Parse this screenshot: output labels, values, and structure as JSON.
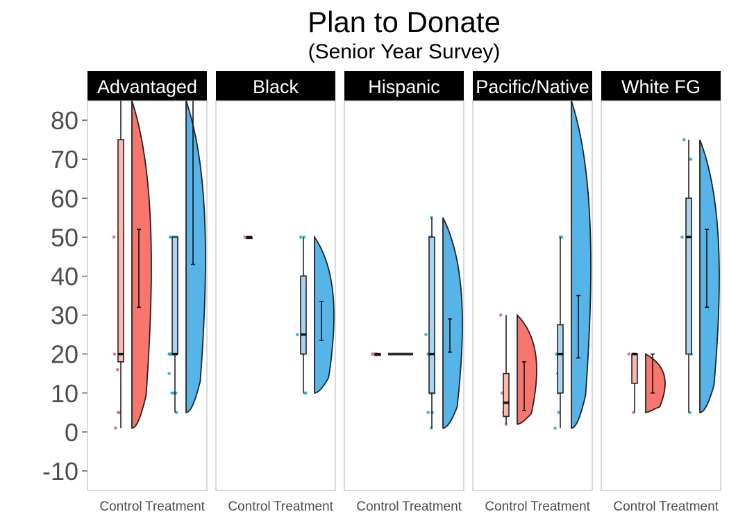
{
  "title": "Plan to Donate",
  "subtitle": "(Senior Year Survey)",
  "colors": {
    "control_fill": "#F8766D",
    "control_box": "#FFB6B0",
    "treatment_fill": "#56B4E9",
    "treatment_box": "#A8D4F2",
    "control_points": "#E06060",
    "treatment_points": "#1AAFB8",
    "strip_bg": "#000000",
    "strip_text": "#ffffff",
    "panel_border": "#b3b3b3",
    "tick_text": "#4d4d4d"
  },
  "chart_data": {
    "type": "raincloud",
    "title": "Plan to Donate",
    "subtitle": "(Senior Year Survey)",
    "xlabel": "",
    "ylabel": "",
    "ylim": [
      -15,
      85
    ],
    "yticks": [
      -10,
      0,
      10,
      20,
      30,
      40,
      50,
      60,
      70,
      80
    ],
    "categories": [
      "Control",
      "Treatment"
    ],
    "grid": false,
    "legend": "none",
    "panels": [
      {
        "name": "Advantaged",
        "groups": {
          "Control": {
            "points": [
              50,
              50,
              20,
              20,
              16,
              5,
              5,
              1
            ],
            "box": {
              "q1": 18,
              "median": 20,
              "q3": 75,
              "lo": 1,
              "hi": 90
            },
            "violin": {
              "min": 1,
              "max": 90
            },
            "mean_ci": {
              "mean": 42,
              "lo": 32,
              "hi": 52
            }
          },
          "Treatment": {
            "points": [
              50,
              50,
              50,
              50,
              50,
              25,
              20,
              20,
              20,
              20,
              20,
              15,
              10,
              10,
              10,
              5
            ],
            "box": {
              "q1": 20,
              "median": 20,
              "q3": 50,
              "lo": 5,
              "hi": 50
            },
            "violin": {
              "min": 5,
              "max": 100
            },
            "mean_ci": {
              "mean": 60,
              "lo": 43,
              "hi": 100
            }
          }
        }
      },
      {
        "name": "Black",
        "groups": {
          "Control": {
            "points": [
              50
            ],
            "box": {
              "q1": 50,
              "median": 50,
              "q3": 50,
              "lo": 50,
              "hi": 50
            },
            "violin": null,
            "mean_ci": null
          },
          "Treatment": {
            "points": [
              50,
              50,
              40,
              30,
              25,
              20,
              10,
              10
            ],
            "box": {
              "q1": 20,
              "median": 25,
              "q3": 40,
              "lo": 10,
              "hi": 50
            },
            "violin": {
              "min": 10,
              "max": 50
            },
            "mean_ci": {
              "mean": 28,
              "lo": 23.5,
              "hi": 33.5
            }
          }
        }
      },
      {
        "name": "Hispanic",
        "groups": {
          "Control": {
            "points": [
              20,
              20,
              20,
              20
            ],
            "box": {
              "q1": 20,
              "median": 20,
              "q3": 20,
              "lo": 20,
              "hi": 20
            },
            "violin": {
              "min": 20,
              "max": 20
            },
            "mean_ci": null
          },
          "Treatment": {
            "points": [
              55,
              50,
              50,
              25,
              20,
              20,
              20,
              10,
              10,
              10,
              5,
              5,
              1
            ],
            "box": {
              "q1": 10,
              "median": 20,
              "q3": 50,
              "lo": 1,
              "hi": 55
            },
            "violin": {
              "min": 1,
              "max": 55
            },
            "mean_ci": {
              "mean": 24.5,
              "lo": 20.5,
              "hi": 29
            }
          }
        }
      },
      {
        "name": "Pacific/Native",
        "groups": {
          "Control": {
            "points": [
              30,
              10,
              8,
              5,
              5,
              2
            ],
            "box": {
              "q1": 4,
              "median": 7.5,
              "q3": 15,
              "lo": 2,
              "hi": 30
            },
            "violin": {
              "min": 2,
              "max": 30
            },
            "mean_ci": {
              "mean": 12,
              "lo": 5.5,
              "hi": 18
            }
          },
          "Treatment": {
            "points": [
              50,
              50,
              20,
              20,
              15,
              10,
              5,
              1
            ],
            "box": {
              "q1": 10,
              "median": 20,
              "q3": 27.5,
              "lo": 1,
              "hi": 50
            },
            "violin": {
              "min": 1,
              "max": 100
            },
            "mean_ci": {
              "mean": 27,
              "lo": 19,
              "hi": 35
            }
          }
        }
      },
      {
        "name": "White FG",
        "groups": {
          "Control": {
            "points": [
              20,
              20,
              20,
              5
            ],
            "box": {
              "q1": 12.5,
              "median": 20,
              "q3": 20,
              "lo": 5,
              "hi": 20
            },
            "violin": {
              "min": 5,
              "max": 20
            },
            "mean_ci": {
              "mean": 15,
              "lo": 10,
              "hi": 20
            }
          },
          "Treatment": {
            "points": [
              75,
              70,
              50,
              50,
              25,
              20,
              5
            ],
            "box": {
              "q1": 20,
              "median": 50,
              "q3": 60,
              "lo": 5,
              "hi": 75
            },
            "violin": {
              "min": 5,
              "max": 75
            },
            "mean_ci": {
              "mean": 42,
              "lo": 32,
              "hi": 52
            }
          }
        }
      }
    ]
  }
}
